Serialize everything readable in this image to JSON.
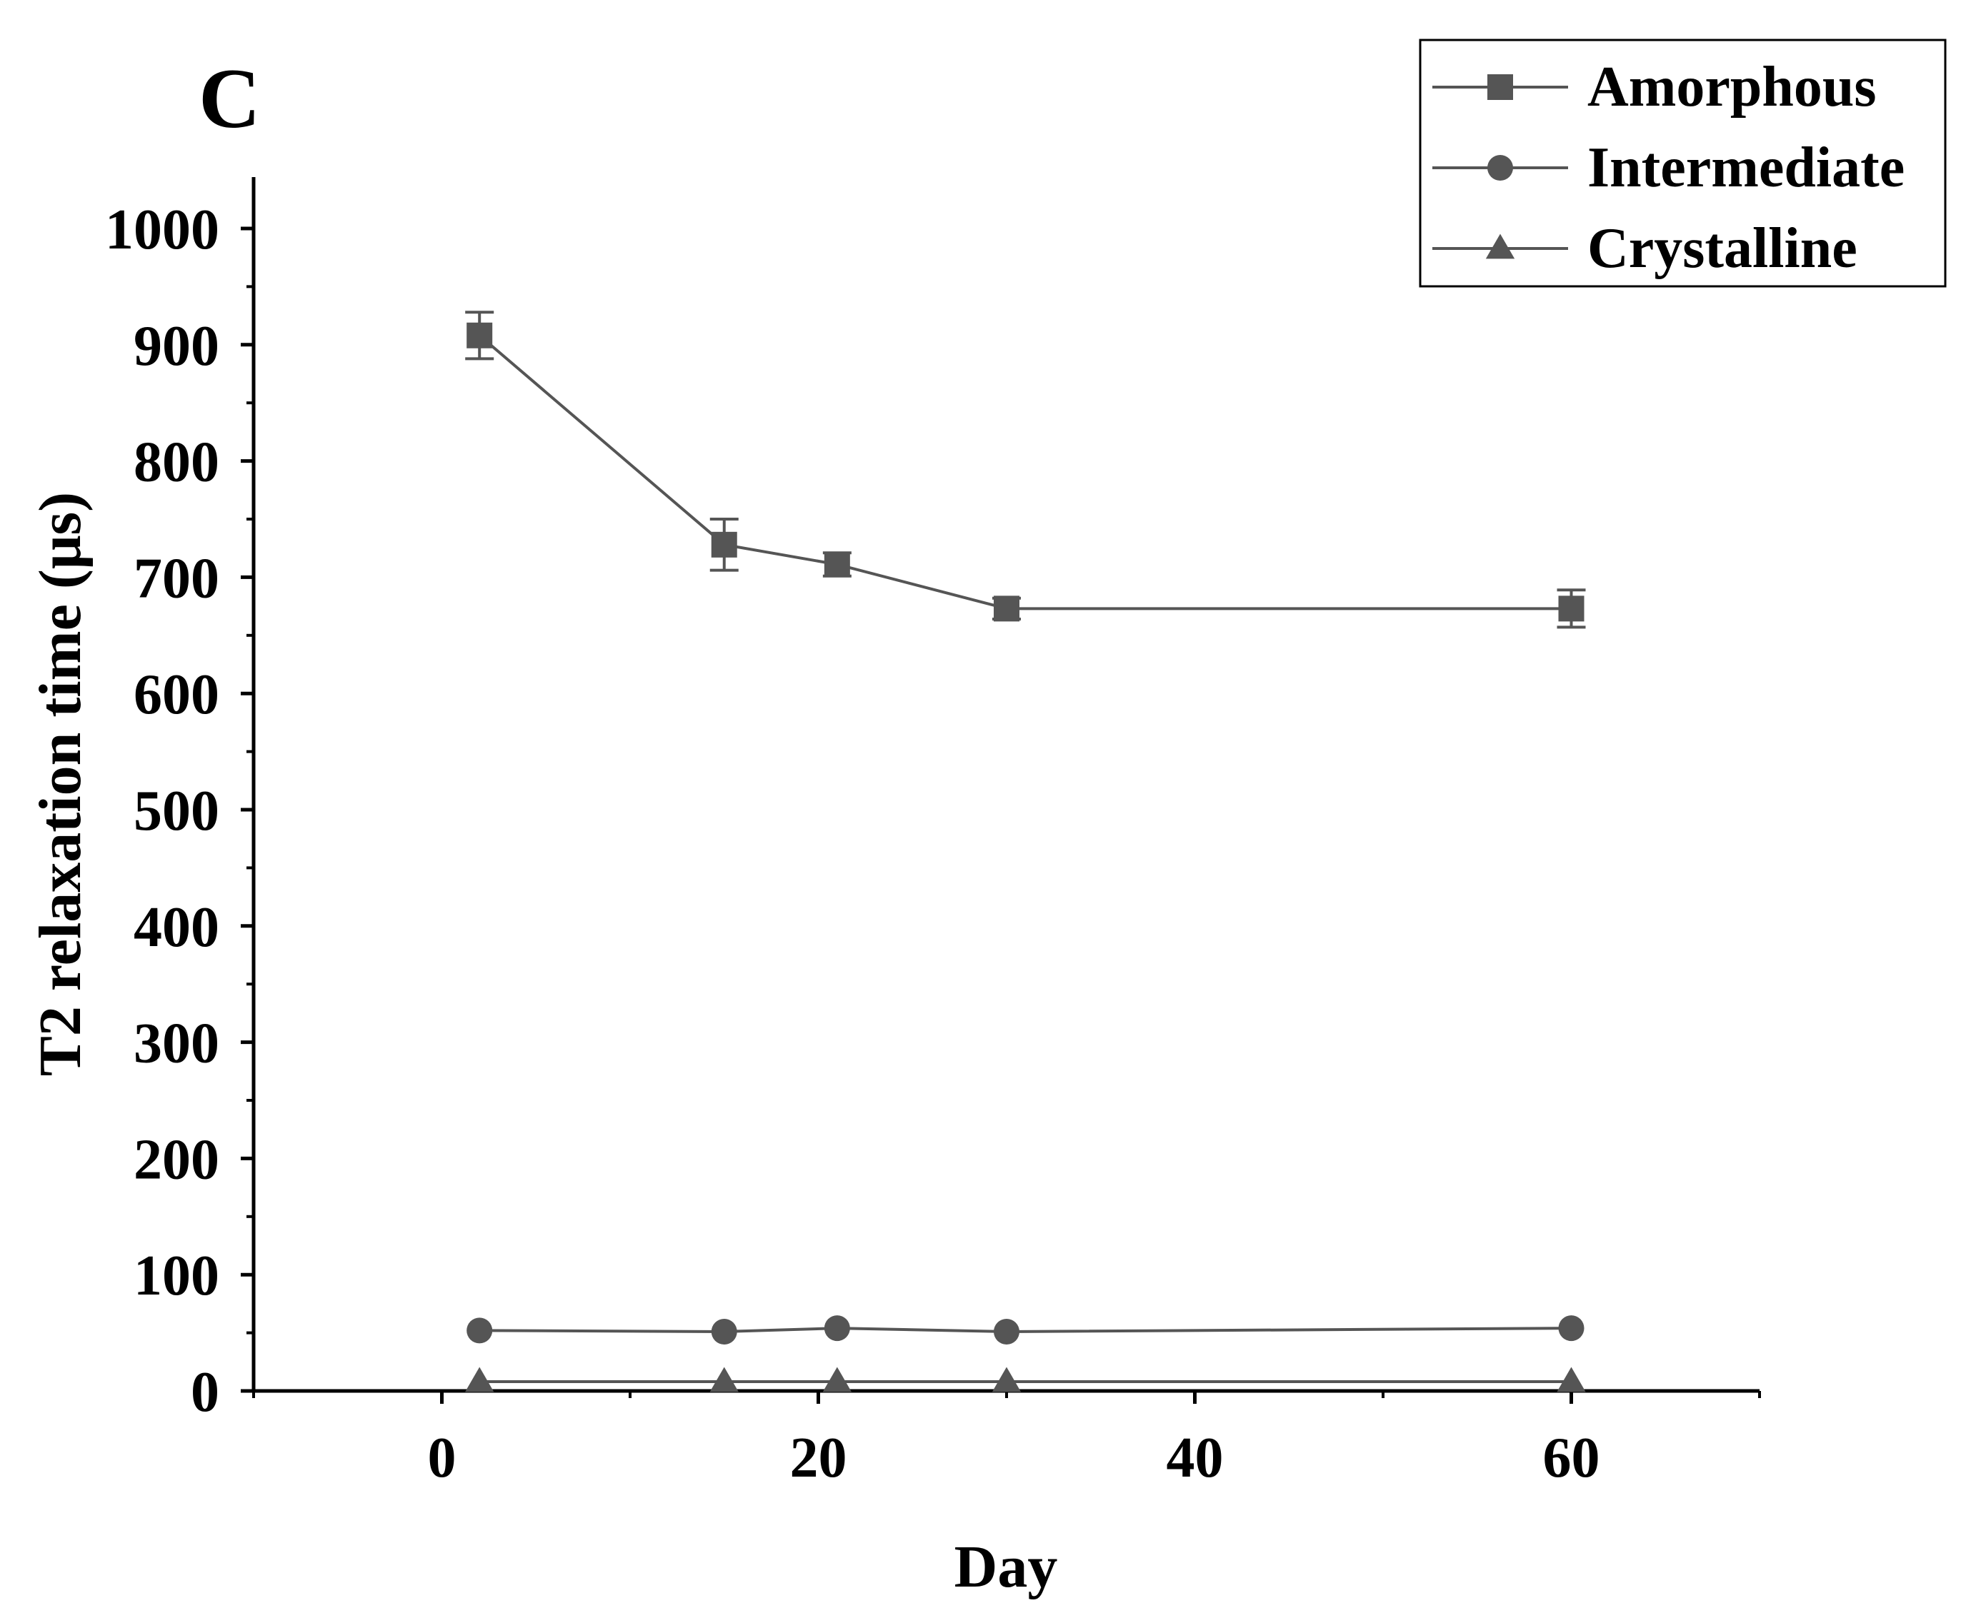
{
  "panel_label": "C",
  "chart_data": {
    "type": "line",
    "title": "",
    "xlabel": "Day",
    "ylabel": "T2 relaxation time (μs)",
    "xlim": [
      -10,
      70
    ],
    "ylim": [
      0,
      1050
    ],
    "x_ticks": [
      0,
      20,
      40,
      60
    ],
    "x_minor_ticks": [
      -10,
      10,
      30,
      50,
      70
    ],
    "y_ticks": [
      0,
      100,
      200,
      300,
      400,
      500,
      600,
      700,
      800,
      900,
      1000
    ],
    "grid": false,
    "legend_position": "top-right",
    "series": [
      {
        "name": "Amorphous",
        "marker": "square",
        "x": [
          2,
          15,
          21,
          30,
          60
        ],
        "y": [
          908,
          728,
          711,
          673,
          673
        ],
        "error": [
          20,
          22,
          10,
          9,
          16
        ]
      },
      {
        "name": "Intermediate",
        "marker": "circle",
        "x": [
          2,
          15,
          21,
          30,
          60
        ],
        "y": [
          52,
          51,
          54,
          51,
          54
        ],
        "error": [
          0,
          0,
          0,
          0,
          0
        ]
      },
      {
        "name": "Crystalline",
        "marker": "triangle",
        "x": [
          2,
          15,
          21,
          30,
          60
        ],
        "y": [
          8,
          8,
          8,
          8,
          8
        ],
        "error": [
          0,
          0,
          0,
          0,
          0
        ]
      }
    ],
    "colors": {
      "series": "#555555",
      "axis": "#000000"
    }
  }
}
